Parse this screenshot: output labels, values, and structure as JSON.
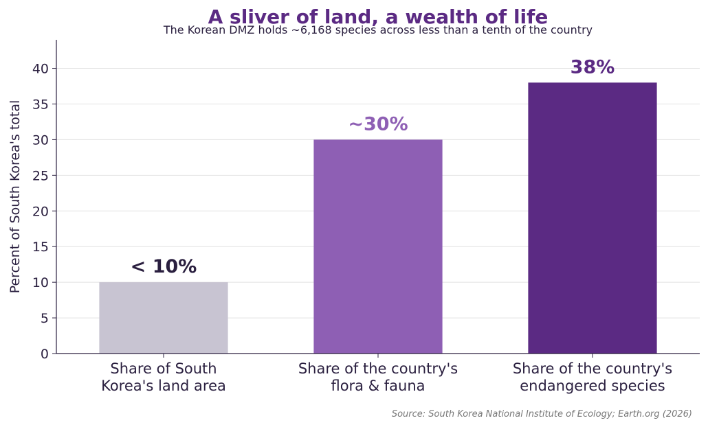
{
  "chart_data": {
    "type": "bar",
    "title": "A sliver of land, a wealth of life",
    "subtitle": "The Korean DMZ holds ~6,168 species across less than a tenth of the country",
    "ylabel": "Percent of South Korea's total",
    "xlabel": "",
    "ylim": [
      0,
      44
    ],
    "yticks": [
      0,
      5,
      10,
      15,
      20,
      25,
      30,
      35,
      40
    ],
    "grid": true,
    "categories": [
      [
        "Share of South",
        "Korea's land area"
      ],
      [
        "Share of the country's",
        "flora & fauna"
      ],
      [
        "Share of the country's",
        "endangered species"
      ]
    ],
    "values": [
      10,
      30,
      38
    ],
    "data_labels": [
      "< 10%",
      "~30%",
      "38%"
    ],
    "colors": {
      "bars": [
        "#c8c4d2",
        "#8e5fb4",
        "#5b2a83"
      ],
      "data_labels": [
        "#2a1f3f",
        "#8e5fb4",
        "#5b2a83"
      ],
      "title": "#5b2a83",
      "text": "#2a1f3f",
      "grid": "#e2e2e2",
      "source": "#777777"
    },
    "source": "Source: South Korea National Institute of Ecology; Earth.org (2026)"
  }
}
